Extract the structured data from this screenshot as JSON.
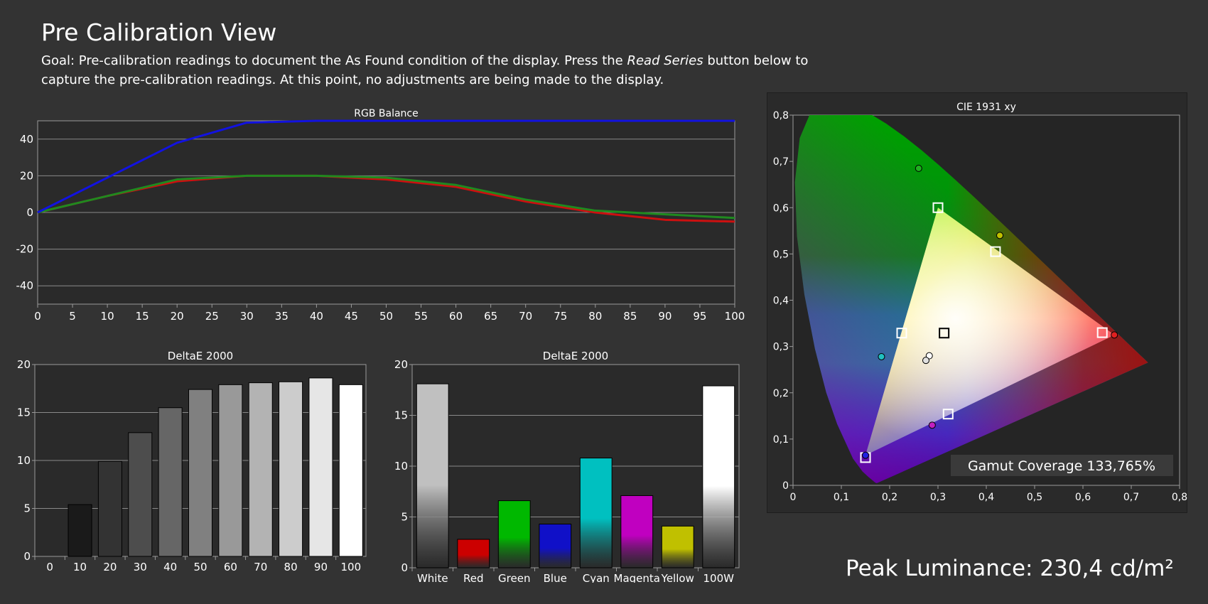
{
  "page": {
    "title": "Pre Calibration View",
    "goal_prefix": "Goal: Pre-calibration readings to document the As Found condition of the display. Press the ",
    "goal_emphasis": "Read Series",
    "goal_suffix": " button below to capture the pre-calibration readings. At this point, no adjustments are being made to the display.",
    "peak_luminance": "Peak Luminance: 230,4 cd/m²"
  },
  "colors": {
    "background": "#333333",
    "plot_bg": "#2a2a2a",
    "grid": "#8a8a8a",
    "red_line": "#cc1010",
    "green_line": "#1f8a1f",
    "blue_line": "#1212e0"
  },
  "chart_data": [
    {
      "id": "rgb_balance",
      "type": "line",
      "title": "RGB Balance",
      "x": [
        0,
        10,
        20,
        30,
        40,
        50,
        60,
        70,
        80,
        90,
        100
      ],
      "xlim": [
        0,
        100
      ],
      "xticks": [
        0,
        5,
        10,
        15,
        20,
        25,
        30,
        35,
        40,
        45,
        50,
        55,
        60,
        65,
        70,
        75,
        80,
        85,
        90,
        95,
        100
      ],
      "ylim": [
        -50,
        50
      ],
      "yticks": [
        -40,
        -20,
        0,
        20,
        40
      ],
      "series": [
        {
          "color": "#cc1010",
          "values": [
            0,
            9,
            17,
            20,
            20,
            18,
            14,
            6,
            0,
            -4,
            -5
          ]
        },
        {
          "color": "#1f8a1f",
          "values": [
            0,
            9,
            18,
            20,
            20,
            19,
            15,
            7,
            1,
            -1,
            -3
          ]
        },
        {
          "color": "#1212e0",
          "values": [
            0,
            19,
            38,
            49,
            50,
            50,
            50,
            50,
            50,
            50,
            50
          ]
        }
      ]
    },
    {
      "id": "deltae_grayscale",
      "type": "bar",
      "title": "DeltaE 2000",
      "categories": [
        "0",
        "10",
        "20",
        "30",
        "40",
        "50",
        "60",
        "70",
        "80",
        "90",
        "100"
      ],
      "values": [
        0,
        5.4,
        9.9,
        12.9,
        15.5,
        17.4,
        17.9,
        18.1,
        18.2,
        18.6,
        17.9
      ],
      "bar_colors": [
        "#000000",
        "#1a1a1a",
        "#333333",
        "#4d4d4d",
        "#666666",
        "#808080",
        "#999999",
        "#b3b3b3",
        "#cccccc",
        "#e6e6e6",
        "#ffffff"
      ],
      "ylim": [
        0,
        20
      ],
      "yticks": [
        0,
        5,
        10,
        15,
        20
      ]
    },
    {
      "id": "deltae_colors",
      "type": "bar",
      "title": "DeltaE 2000",
      "categories": [
        "White",
        "Red",
        "Green",
        "Blue",
        "Cyan",
        "Magenta",
        "Yellow",
        "100W"
      ],
      "values": [
        18.1,
        2.8,
        6.6,
        4.3,
        10.8,
        7.1,
        4.1,
        17.9
      ],
      "bar_colors": [
        "#c0c0c0",
        "#cc0000",
        "#00b800",
        "#1010c8",
        "#00c0c0",
        "#c000c0",
        "#c0c000",
        "#ffffff"
      ],
      "ylim": [
        0,
        20
      ],
      "yticks": [
        0,
        5,
        10,
        15,
        20
      ]
    },
    {
      "id": "cie_1931",
      "type": "scatter",
      "title": "CIE 1931 xy",
      "xlim": [
        0,
        0.8
      ],
      "ylim": [
        0,
        0.8
      ],
      "xticks": [
        "0",
        "0,1",
        "0,2",
        "0,3",
        "0,4",
        "0,5",
        "0,6",
        "0,7",
        "0,8"
      ],
      "yticks": [
        "0",
        "0,1",
        "0,2",
        "0,3",
        "0,4",
        "0,5",
        "0,6",
        "0,7",
        "0,8"
      ],
      "gamut_coverage": "Gamut Coverage 133,765%",
      "targets": [
        {
          "name": "red",
          "x": 0.64,
          "y": 0.33
        },
        {
          "name": "green",
          "x": 0.3,
          "y": 0.6
        },
        {
          "name": "blue",
          "x": 0.15,
          "y": 0.06
        },
        {
          "name": "cyan",
          "x": 0.225,
          "y": 0.329
        },
        {
          "name": "magenta",
          "x": 0.321,
          "y": 0.154
        },
        {
          "name": "yellow",
          "x": 0.419,
          "y": 0.505
        },
        {
          "name": "white",
          "x": 0.3127,
          "y": 0.329
        }
      ],
      "measurements": [
        {
          "name": "red",
          "x": 0.665,
          "y": 0.325,
          "color": "#e02020"
        },
        {
          "name": "green",
          "x": 0.26,
          "y": 0.685,
          "color": "#20b020"
        },
        {
          "name": "blue",
          "x": 0.15,
          "y": 0.065,
          "color": "#2020e0"
        },
        {
          "name": "cyan",
          "x": 0.183,
          "y": 0.278,
          "color": "#20c0c0"
        },
        {
          "name": "magenta",
          "x": 0.288,
          "y": 0.13,
          "color": "#c020c0"
        },
        {
          "name": "yellow",
          "x": 0.428,
          "y": 0.54,
          "color": "#c0c000"
        },
        {
          "name": "white-a",
          "x": 0.282,
          "y": 0.28,
          "color": "#ffffff"
        },
        {
          "name": "white-b",
          "x": 0.275,
          "y": 0.27,
          "color": "#e0e0e0"
        }
      ]
    }
  ]
}
